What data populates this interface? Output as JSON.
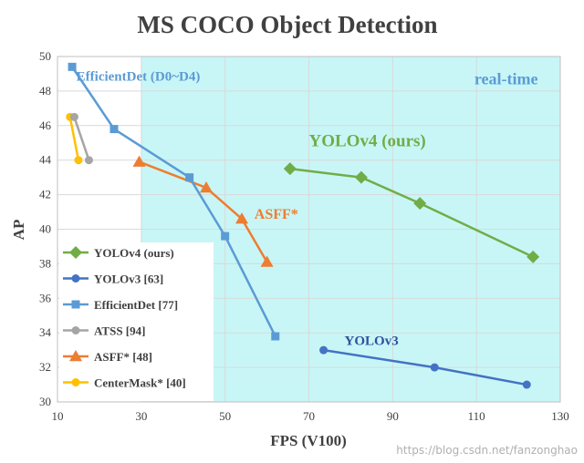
{
  "chart_data": {
    "type": "line",
    "title": "MS COCO Object Detection",
    "xlabel": "FPS (V100)",
    "ylabel": "AP",
    "xlim": [
      10,
      130
    ],
    "ylim": [
      30,
      50
    ],
    "xticks": [
      10,
      30,
      50,
      70,
      90,
      110,
      130
    ],
    "yticks": [
      30,
      32,
      34,
      36,
      38,
      40,
      42,
      44,
      46,
      48,
      50
    ],
    "grid": true,
    "realtime_region": {
      "x_start": 30,
      "label": "real-time",
      "color": "#c8f6f6"
    },
    "legend_position": "bottom-left",
    "series": [
      {
        "name": "YOLOv4 (ours)",
        "color": "#70ad47",
        "marker": "diamond",
        "x": [
          65.5,
          82.5,
          96.5,
          123.5
        ],
        "y": [
          43.5,
          43.0,
          41.5,
          38.4
        ]
      },
      {
        "name": "YOLOv3 [63]",
        "color": "#4472c4",
        "marker": "circle",
        "x": [
          73.5,
          100,
          122
        ],
        "y": [
          33.0,
          32.0,
          31.0
        ]
      },
      {
        "name": "EfficientDet [77]",
        "color": "#5b9bd5",
        "marker": "square",
        "x": [
          13.5,
          23.5,
          41.5,
          50,
          62
        ],
        "y": [
          49.4,
          45.8,
          43.0,
          39.6,
          33.8
        ]
      },
      {
        "name": "ATSS [94]",
        "color": "#a5a5a5",
        "marker": "circle",
        "x": [
          14,
          17.5
        ],
        "y": [
          46.5,
          44.0
        ]
      },
      {
        "name": "ASFF* [48]",
        "color": "#ed7d31",
        "marker": "triangle",
        "x": [
          29.5,
          45.5,
          54,
          60
        ],
        "y": [
          43.9,
          42.4,
          40.6,
          38.1
        ]
      },
      {
        "name": "CenterMask* [40]",
        "color": "#ffc000",
        "marker": "circle",
        "x": [
          13,
          15
        ],
        "y": [
          46.5,
          44.0
        ]
      }
    ],
    "annotations": [
      {
        "text": "EfficientDet (D0~D4)",
        "x": 14.5,
        "y": 48.6,
        "color": "#5b9bd5",
        "size": 15
      },
      {
        "text": "real-time",
        "x": 109.5,
        "y": 48.4,
        "color": "#5b9bd5",
        "size": 18
      },
      {
        "text": "YOLOv4 (ours)",
        "x": 70,
        "y": 44.8,
        "color": "#70ad47",
        "size": 19
      },
      {
        "text": "ASFF*",
        "x": 57,
        "y": 40.6,
        "color": "#ed7d31",
        "size": 16
      },
      {
        "text": "YOLOv3",
        "x": 78.5,
        "y": 33.3,
        "color": "#2f4f9f",
        "size": 15
      }
    ]
  },
  "watermark": "https://blog.csdn.net/fanzonghao"
}
